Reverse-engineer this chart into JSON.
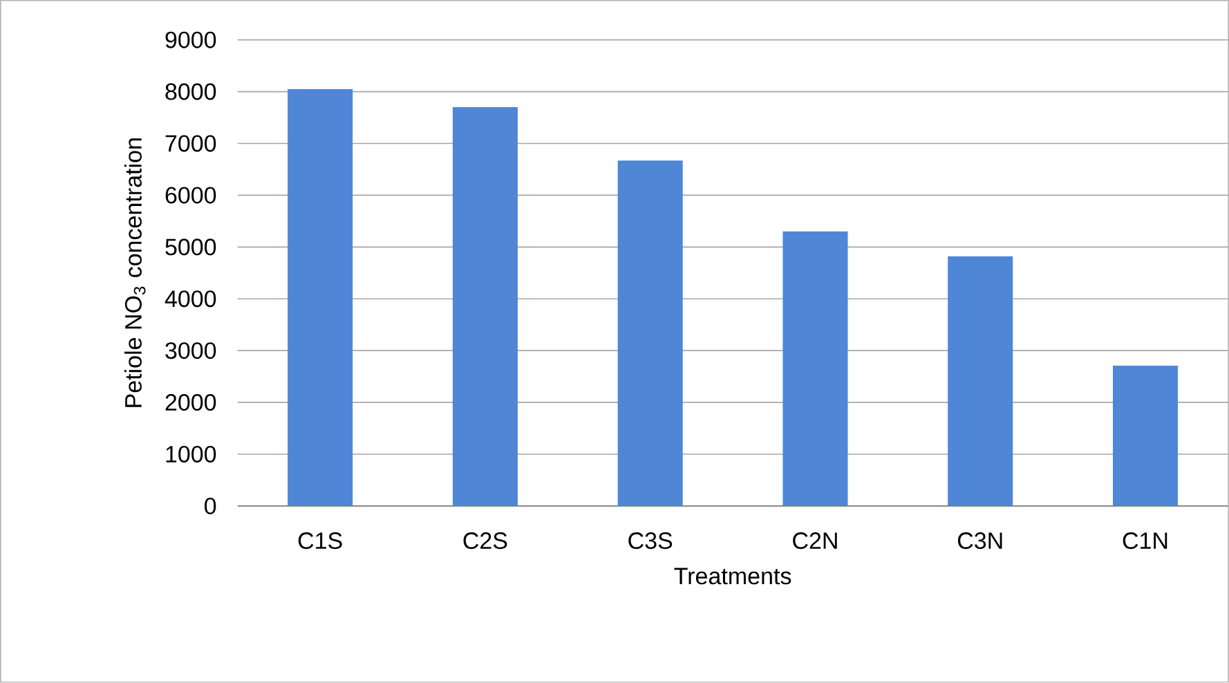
{
  "chart_data": {
    "type": "bar",
    "xlabel": "Treatments",
    "ylabel": "Petiole NO$_{3}$ concentration",
    "categories": [
      "C1S",
      "C2S",
      "C3S",
      "C2N",
      "C3N",
      "C1N"
    ],
    "values": [
      8050,
      7700,
      6670,
      5300,
      4820,
      2710
    ],
    "color": "#4f86d6",
    "ylim": [
      0,
      9000
    ],
    "yticks": [
      0,
      1000,
      2000,
      3000,
      4000,
      5000,
      6000,
      7000,
      8000,
      9000
    ],
    "grid": "y"
  }
}
